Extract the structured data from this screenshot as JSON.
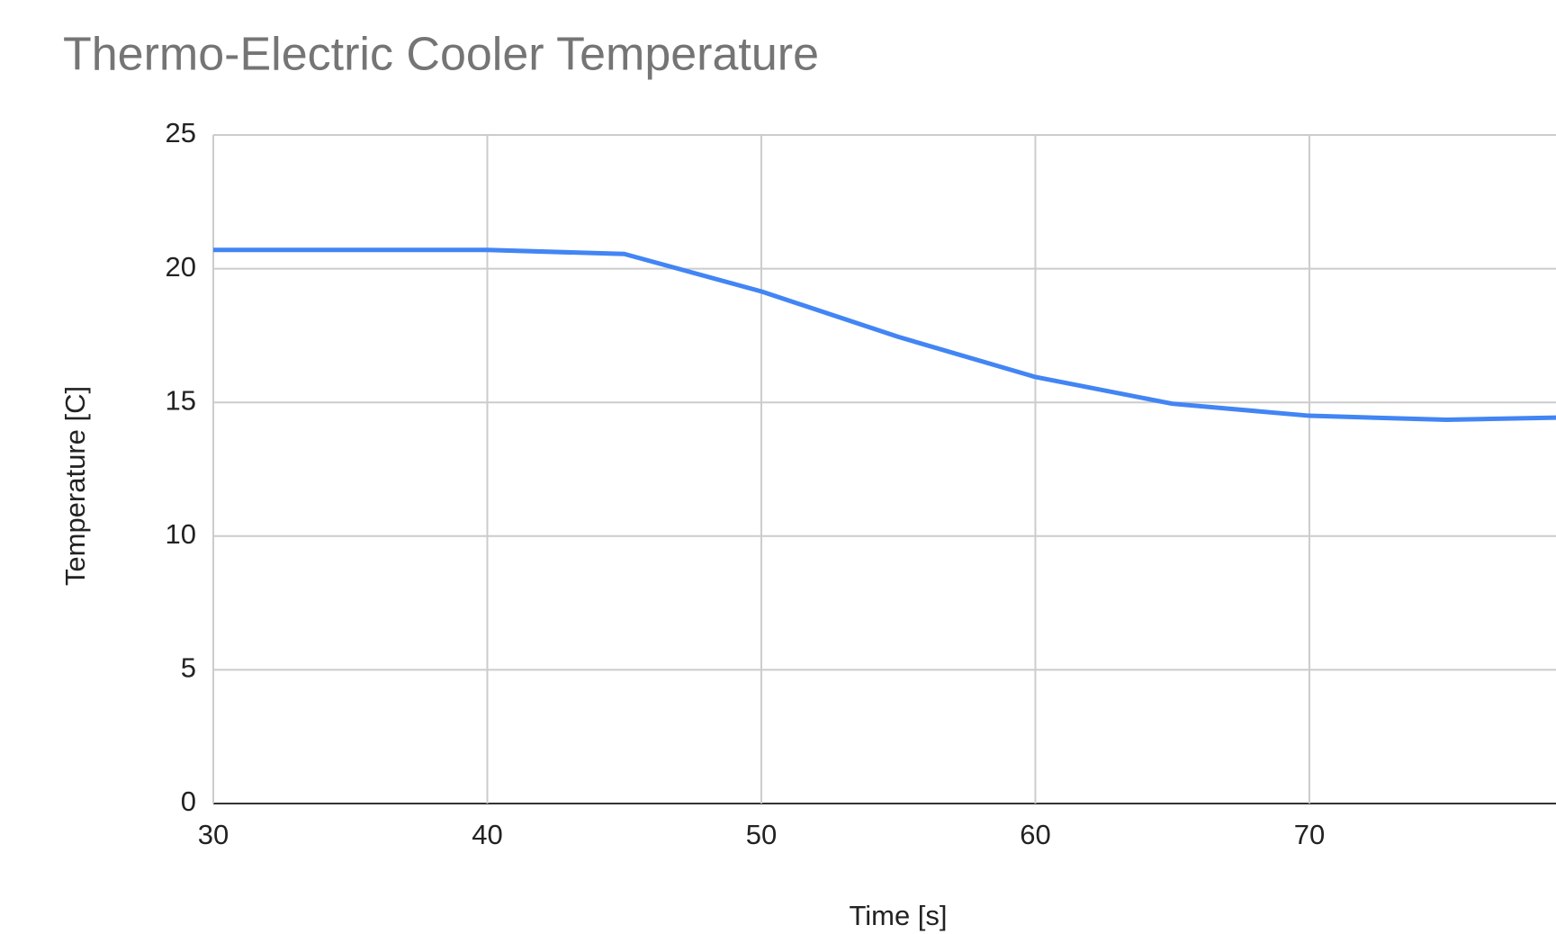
{
  "chart_data": {
    "type": "line",
    "title": "Thermo-Electric Cooler Temperature",
    "x_label": "Time [s]",
    "y_label": "Temperature [C]",
    "x": [
      30,
      40,
      45,
      50,
      55,
      60,
      65,
      70,
      75,
      80
    ],
    "series": [
      {
        "name": "Temperature [C]",
        "color": "#4285f4",
        "values": [
          20.7,
          20.7,
          20.55,
          19.15,
          17.45,
          15.95,
          14.95,
          14.5,
          14.35,
          14.45
        ]
      }
    ],
    "xlim": [
      30,
      79
    ],
    "xticks": [
      30,
      40,
      50,
      60,
      70
    ],
    "ylim": [
      0,
      25
    ],
    "yticks": [
      0,
      5,
      10,
      15,
      20,
      25
    ],
    "grid": true
  }
}
